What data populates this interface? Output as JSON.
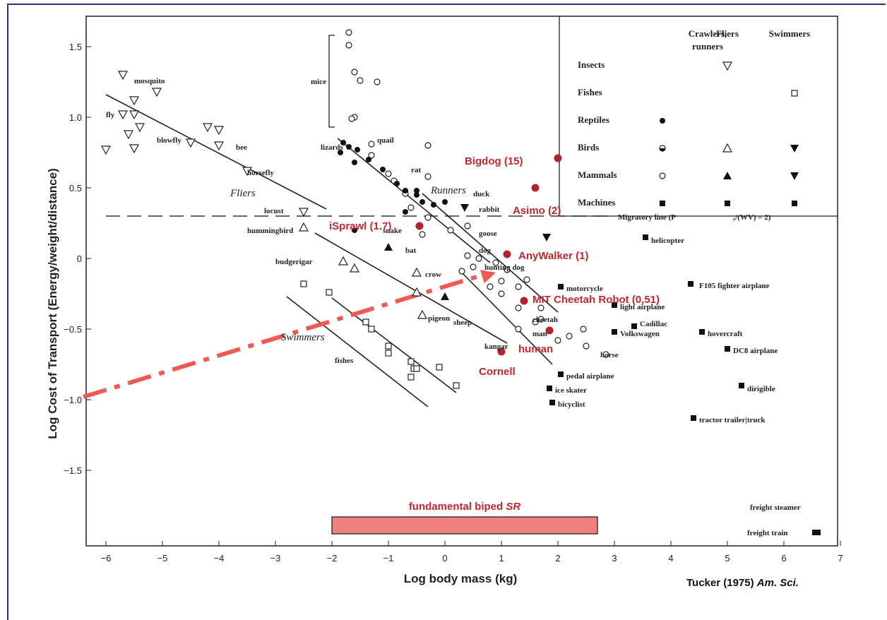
{
  "chart_data": {
    "type": "scatter",
    "xlabel": "Log body mass (kg)",
    "ylabel": "Log Cost of Transport (Energy/weight/distance)",
    "xlim": [
      -6.35,
      7.1
    ],
    "ylim": [
      -1.95,
      1.7
    ],
    "x_ticks": [
      "−6",
      "−5",
      "−4",
      "−3",
      "−2",
      "−1",
      "0",
      "1",
      "2",
      "3",
      "4",
      "5",
      "6",
      "7"
    ],
    "y_ticks": [
      "1.5",
      "1.0",
      "0.5",
      "0",
      "−0.5",
      "−1.0",
      "−1.5"
    ],
    "group_labels": [
      {
        "text": "Fliers",
        "x": -3.8,
        "y": 0.44
      },
      {
        "text": "Runners",
        "x": -0.25,
        "y": 0.46
      },
      {
        "text": "Swimmers",
        "x": -2.9,
        "y": -0.58
      }
    ],
    "migratory_line": {
      "y": 0.3,
      "label": "Migratory line (P"
    },
    "trend_lines": [
      {
        "x1": -6.0,
        "y1": 1.16,
        "x2": -2.1,
        "y2": 0.35
      },
      {
        "x1": -1.9,
        "y1": 0.85,
        "x2": 0.8,
        "y2": -0.03
      },
      {
        "x1": -2.3,
        "y1": 0.18,
        "x2": 1.1,
        "y2": -0.6
      },
      {
        "x1": -2.8,
        "y1": -0.27,
        "x2": -0.3,
        "y2": -1.05
      },
      {
        "x1": -2.0,
        "y1": -0.28,
        "x2": 0.2,
        "y2": -0.95
      },
      {
        "x1": -0.4,
        "y1": 0.46,
        "x2": 2.0,
        "y2": -0.38
      },
      {
        "x1": 0.3,
        "y1": -0.1,
        "x2": 1.9,
        "y2": -0.75
      }
    ],
    "mice_bracket": {
      "x": -2.05,
      "y_top": 1.58,
      "y_bottom": 0.93,
      "label": "mice"
    },
    "animal_labels": [
      {
        "text": "mosquito",
        "x": -5.5,
        "y": 1.26
      },
      {
        "text": "fly",
        "x": -6.0,
        "y": 1.02
      },
      {
        "text": "blowfly",
        "x": -5.1,
        "y": 0.84
      },
      {
        "text": "bee",
        "x": -3.7,
        "y": 0.79
      },
      {
        "text": "horsefly",
        "x": -3.5,
        "y": 0.61
      },
      {
        "text": "locust",
        "x": -3.2,
        "y": 0.34
      },
      {
        "text": "hummingbird",
        "x": -3.5,
        "y": 0.2
      },
      {
        "text": "budgerigar",
        "x": -3.0,
        "y": -0.02
      },
      {
        "text": "lizards",
        "x": -2.2,
        "y": 0.79
      },
      {
        "text": "quail",
        "x": -1.2,
        "y": 0.84
      },
      {
        "text": "rat",
        "x": -0.6,
        "y": 0.63
      },
      {
        "text": "duck",
        "x": 0.5,
        "y": 0.46
      },
      {
        "text": "rabbit",
        "x": 0.6,
        "y": 0.35
      },
      {
        "text": "snake",
        "x": -1.1,
        "y": 0.2
      },
      {
        "text": "goose",
        "x": 0.6,
        "y": 0.18
      },
      {
        "text": "bat",
        "x": -0.7,
        "y": 0.06
      },
      {
        "text": "dog",
        "x": 0.6,
        "y": 0.06
      },
      {
        "text": "hunting dog",
        "x": 0.7,
        "y": -0.06
      },
      {
        "text": "crow",
        "x": -0.35,
        "y": -0.11
      },
      {
        "text": "pigeon",
        "x": -0.3,
        "y": -0.42
      },
      {
        "text": "sheep",
        "x": 0.15,
        "y": -0.45
      },
      {
        "text": "cheetah",
        "x": 1.55,
        "y": -0.43
      },
      {
        "text": "man",
        "x": 1.55,
        "y": -0.53
      },
      {
        "text": "kangar",
        "x": 0.7,
        "y": -0.62
      },
      {
        "text": "horse",
        "x": 2.75,
        "y": -0.68
      },
      {
        "text": "fishes",
        "x": -1.95,
        "y": -0.72
      }
    ],
    "series": [
      {
        "name": "Insects",
        "marker": "triangle-down-open",
        "points": [
          [
            -5.7,
            1.3
          ],
          [
            -5.5,
            1.12
          ],
          [
            -5.1,
            1.18
          ],
          [
            -5.7,
            1.02
          ],
          [
            -5.5,
            1.02
          ],
          [
            -5.4,
            0.93
          ],
          [
            -5.6,
            0.88
          ],
          [
            -5.5,
            0.78
          ],
          [
            -6.0,
            0.77
          ],
          [
            -4.5,
            0.82
          ],
          [
            -4.2,
            0.93
          ],
          [
            -4.0,
            0.91
          ],
          [
            -4.0,
            0.8
          ],
          [
            -3.5,
            0.62
          ],
          [
            -2.5,
            0.33
          ]
        ]
      },
      {
        "name": "Birds",
        "marker": "triangle-up-open",
        "points": [
          [
            -2.5,
            0.22
          ],
          [
            -1.8,
            -0.02
          ],
          [
            -1.6,
            -0.07
          ],
          [
            -0.5,
            -0.1
          ],
          [
            -0.4,
            -0.4
          ],
          [
            -0.5,
            -0.24
          ]
        ]
      },
      {
        "name": "Mammals",
        "marker": "circle-open",
        "points": [
          [
            -1.7,
            1.6
          ],
          [
            -1.7,
            1.51
          ],
          [
            -1.6,
            1.32
          ],
          [
            -1.5,
            1.26
          ],
          [
            -1.2,
            1.25
          ],
          [
            -1.6,
            1.0
          ],
          [
            -1.65,
            0.99
          ],
          [
            -1.3,
            0.81
          ],
          [
            -1.3,
            0.73
          ],
          [
            -1.0,
            0.6
          ],
          [
            -0.9,
            0.55
          ],
          [
            -0.7,
            0.46
          ],
          [
            -0.3,
            0.58
          ],
          [
            -0.3,
            0.8
          ],
          [
            -0.6,
            0.36
          ],
          [
            -0.3,
            0.29
          ],
          [
            0.1,
            0.2
          ],
          [
            -0.4,
            0.17
          ],
          [
            0.4,
            0.23
          ],
          [
            0.4,
            0.02
          ],
          [
            0.6,
            0.0
          ],
          [
            0.3,
            -0.09
          ],
          [
            0.5,
            -0.06
          ],
          [
            0.8,
            -0.2
          ],
          [
            0.9,
            -0.03
          ],
          [
            1.0,
            -0.16
          ],
          [
            1.0,
            -0.25
          ],
          [
            1.1,
            -0.08
          ],
          [
            1.3,
            -0.2
          ],
          [
            1.3,
            -0.35
          ],
          [
            1.45,
            -0.15
          ],
          [
            1.7,
            -0.35
          ],
          [
            1.6,
            -0.45
          ],
          [
            1.7,
            -0.43
          ],
          [
            1.3,
            -0.5
          ],
          [
            2.0,
            -0.58
          ],
          [
            2.2,
            -0.55
          ],
          [
            2.45,
            -0.5
          ],
          [
            2.5,
            -0.62
          ],
          [
            2.85,
            -0.68
          ]
        ]
      },
      {
        "name": "Reptiles",
        "marker": "circle-filled",
        "points": [
          [
            -1.8,
            0.82
          ],
          [
            -1.85,
            0.75
          ],
          [
            -1.7,
            0.79
          ],
          [
            -1.6,
            0.68
          ],
          [
            -1.55,
            0.77
          ],
          [
            -1.35,
            0.7
          ],
          [
            -1.1,
            0.63
          ],
          [
            -0.85,
            0.53
          ],
          [
            -0.7,
            0.48
          ],
          [
            -0.5,
            0.48
          ],
          [
            -0.5,
            0.45
          ],
          [
            -0.4,
            0.4
          ],
          [
            -0.2,
            0.38
          ],
          [
            0.0,
            0.4
          ],
          [
            -1.6,
            0.2
          ],
          [
            -0.7,
            0.33
          ]
        ]
      },
      {
        "name": "Mammals (filled)",
        "marker": "triangle-up-filled",
        "points": [
          [
            -1.0,
            0.08
          ],
          [
            0.0,
            -0.27
          ]
        ]
      },
      {
        "name": "Birds (filled down)",
        "marker": "triangle-down-filled",
        "points": [
          [
            0.35,
            0.36
          ],
          [
            1.8,
            0.15
          ]
        ]
      },
      {
        "name": "Machines",
        "marker": "square-filled",
        "points": [
          [
            3.55,
            0.15
          ],
          [
            2.05,
            -0.2
          ],
          [
            3.0,
            -0.33
          ],
          [
            3.35,
            -0.48
          ],
          [
            3.0,
            -0.52
          ],
          [
            4.35,
            -0.18
          ],
          [
            4.55,
            -0.52
          ],
          [
            5.0,
            -0.64
          ],
          [
            2.05,
            -0.82
          ],
          [
            1.85,
            -0.92
          ],
          [
            5.25,
            -0.9
          ],
          [
            1.9,
            -1.02
          ],
          [
            4.4,
            -1.13
          ],
          [
            6.55,
            -1.94
          ],
          [
            6.6,
            -1.94
          ]
        ]
      },
      {
        "name": "Fishes",
        "marker": "square-open",
        "points": [
          [
            -2.5,
            -0.18
          ],
          [
            -2.05,
            -0.24
          ],
          [
            -1.4,
            -0.45
          ],
          [
            -1.3,
            -0.5
          ],
          [
            -1.0,
            -0.62
          ],
          [
            -1.0,
            -0.67
          ],
          [
            -0.6,
            -0.73
          ],
          [
            -0.55,
            -0.78
          ],
          [
            -0.6,
            -0.84
          ],
          [
            -0.5,
            -0.78
          ],
          [
            -0.1,
            -0.77
          ],
          [
            0.2,
            -0.9
          ]
        ]
      },
      {
        "name": "Robots",
        "marker": "circle-red",
        "points": [
          [
            2.0,
            0.71
          ],
          [
            1.6,
            0.5
          ],
          [
            -0.45,
            0.23
          ],
          [
            1.1,
            0.03
          ],
          [
            1.4,
            -0.3
          ],
          [
            1.85,
            -0.51
          ],
          [
            1.0,
            -0.66
          ]
        ]
      }
    ],
    "robot_labels": [
      {
        "text": "Bigdog (15)",
        "x": 0.35,
        "y": 0.69,
        "size": 14
      },
      {
        "text": "Asimo (2)",
        "x": 1.2,
        "y": 0.34,
        "size": 17
      },
      {
        "text": "iSprawl (1.7)",
        "x": -2.05,
        "y": 0.23,
        "size": 15
      },
      {
        "text": "AnyWalker (1)",
        "x": 1.3,
        "y": 0.02,
        "size": 16
      },
      {
        "text": "MIT Cheetah Robot (0,51)",
        "x": 1.55,
        "y": -0.29,
        "size": 15
      },
      {
        "text": "human",
        "x": 1.3,
        "y": -0.64,
        "size": 18
      },
      {
        "text": "Cornell",
        "x": 0.6,
        "y": -0.8,
        "size": 18
      }
    ],
    "arrow": {
      "x1": -6.4,
      "y1": -0.98,
      "x2": 0.9,
      "y2": -0.1
    },
    "biped_band": {
      "label": "fundamental biped ",
      "label_italic": "SR",
      "x1": -2.0,
      "x2": 2.7,
      "y1": -1.95,
      "y2": -1.83
    },
    "legend": {
      "title": "",
      "col_headers": [
        "Crawlers,",
        "runners",
        "Fliers",
        "Swimmers"
      ],
      "rows": [
        {
          "label": "Insects",
          "marks": [
            "",
            "tri-down-open",
            ""
          ]
        },
        {
          "label": "Fishes",
          "marks": [
            "",
            "",
            "square-open"
          ]
        },
        {
          "label": "Reptiles",
          "marks": [
            "circle-filled",
            "",
            ""
          ]
        },
        {
          "label": "Birds",
          "marks": [
            "circle-half",
            "tri-up-open",
            "tri-down-filled"
          ]
        },
        {
          "label": "Mammals",
          "marks": [
            "circle-open",
            "tri-up-filled",
            "tri-down-filled"
          ]
        },
        {
          "label": "Machines",
          "marks": [
            "square-filled",
            "square-filled",
            "square-filled"
          ]
        }
      ]
    },
    "machine_labels": [
      {
        "text": "helicopter",
        "x": 3.65,
        "y": 0.13
      },
      {
        "text": "motorcycle",
        "x": 2.15,
        "y": -0.21
      },
      {
        "text": "F105 fighter airplane",
        "x": 4.5,
        "y": -0.19
      },
      {
        "text": "light airplane",
        "x": 3.1,
        "y": -0.34
      },
      {
        "text": "Cadillac",
        "x": 3.45,
        "y": -0.46
      },
      {
        "text": "Volkswagen",
        "x": 3.1,
        "y": -0.53
      },
      {
        "text": "hovercraft",
        "x": 4.65,
        "y": -0.53
      },
      {
        "text": "DC8 airplane",
        "x": 5.1,
        "y": -0.65
      },
      {
        "text": "pedal airplane",
        "x": 2.15,
        "y": -0.83
      },
      {
        "text": "ice skater",
        "x": 1.95,
        "y": -0.93
      },
      {
        "text": "dirigible",
        "x": 5.35,
        "y": -0.92
      },
      {
        "text": "bicyclist",
        "x": 2.0,
        "y": -1.03
      },
      {
        "text": "tractor trailer|truck",
        "x": 4.5,
        "y": -1.14
      },
      {
        "text": "freight steamer",
        "x": 5.4,
        "y": -1.76
      },
      {
        "text": "freight train",
        "x": 5.35,
        "y": -1.94
      }
    ]
  },
  "credit": {
    "main": "Tucker (1975) ",
    "italic": "Am. Sci."
  }
}
